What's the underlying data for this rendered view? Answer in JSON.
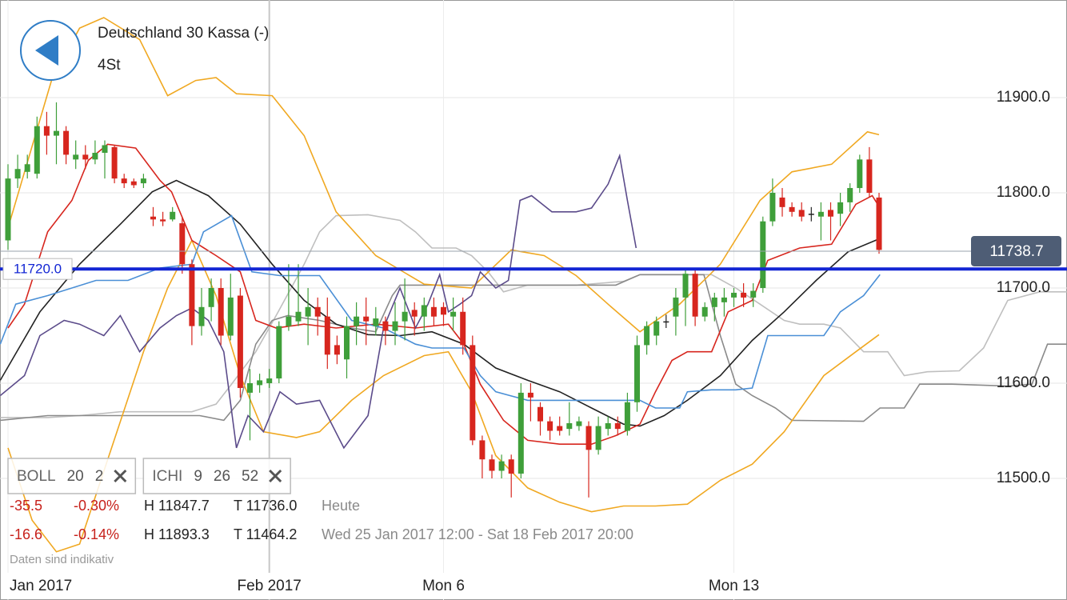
{
  "chart_data": {
    "type": "candlestick",
    "title": "Deutschland 30 Kassa (-)",
    "subtitle": "4St",
    "xlim": [
      -0.826,
      109.42
    ],
    "ylim": [
      11372.3,
      12002.5
    ],
    "xticks": [
      {
        "value": 0,
        "label": "Jan 2017"
      },
      {
        "value": 27,
        "label": "Feb 2017"
      },
      {
        "value": 45,
        "label": "Mon 6"
      },
      {
        "value": 75,
        "label": "Mon 13"
      }
    ],
    "yticks": [
      {
        "value": 11500,
        "label": "11500.0"
      },
      {
        "value": 11600,
        "label": "11600.0"
      },
      {
        "value": 11700,
        "label": "11700.0"
      },
      {
        "value": 11800,
        "label": "11800.0"
      },
      {
        "value": 11900,
        "label": "11900.0"
      }
    ],
    "grid": true,
    "up_color": "#3f9f3a",
    "down_color": "#d7261e",
    "x": [
      0,
      1,
      2,
      3,
      4,
      5,
      6,
      7,
      8,
      9,
      10,
      11,
      12,
      13,
      14,
      15,
      16,
      17,
      18,
      19,
      20,
      21,
      22,
      23,
      24,
      25,
      26,
      27,
      28,
      29,
      30,
      31,
      32,
      33,
      34,
      35,
      36,
      37,
      38,
      39,
      40,
      41,
      42,
      43,
      44,
      45,
      46,
      47,
      48,
      49,
      50,
      51,
      52,
      53,
      54,
      55,
      56,
      57,
      58,
      59,
      60,
      61,
      62,
      63,
      64,
      65,
      66,
      67,
      68,
      69,
      70,
      71,
      72,
      73,
      74,
      75,
      76,
      77,
      78,
      79,
      80,
      81,
      82,
      83,
      84,
      85,
      86,
      87,
      88,
      89,
      90
    ],
    "open": [
      11750,
      11815,
      11822,
      11820,
      11870,
      11860,
      11865,
      11835,
      11840,
      11835,
      11842,
      11848,
      11815,
      11812,
      11810,
      11775,
      11772,
      11772,
      11768,
      11725,
      11660,
      11680,
      11700,
      11650,
      11692,
      11590,
      11598,
      11600,
      11605,
      11660,
      11665,
      11670,
      11680,
      11670,
      11640,
      11625,
      11660,
      11670,
      11660,
      11665,
      11655,
      11665,
      11677,
      11670,
      11680,
      11680,
      11670,
      11675,
      11640,
      11540,
      11520,
      11508,
      11520,
      11505,
      11590,
      11575,
      11560,
      11555,
      11552,
      11555,
      11555,
      11530,
      11552,
      11558,
      11550,
      11580,
      11640,
      11650,
      11665,
      11670,
      11690,
      11715,
      11670,
      11680,
      11685,
      11690,
      11695,
      11690,
      11700,
      11770,
      11795,
      11785,
      11782,
      11778,
      11775,
      11782,
      11778,
      11790,
      11805,
      11835,
      11795
    ],
    "high": [
      11830,
      11840,
      11840,
      11880,
      11885,
      11895,
      11870,
      11855,
      11850,
      11855,
      11855,
      11850,
      11820,
      11815,
      11820,
      11785,
      11780,
      11785,
      11775,
      11730,
      11700,
      11710,
      11710,
      11715,
      11700,
      11615,
      11610,
      11615,
      11665,
      11725,
      11725,
      11700,
      11690,
      11690,
      11650,
      11670,
      11685,
      11690,
      11680,
      11670,
      11685,
      11710,
      11685,
      11690,
      11690,
      11685,
      11690,
      11690,
      11650,
      11545,
      11525,
      11525,
      11525,
      11600,
      11600,
      11580,
      11565,
      11565,
      11580,
      11565,
      11560,
      11565,
      11565,
      11565,
      11590,
      11650,
      11665,
      11670,
      11672,
      11700,
      11720,
      11720,
      11685,
      11695,
      11700,
      11700,
      11705,
      11705,
      11775,
      11815,
      11805,
      11790,
      11790,
      11785,
      11790,
      11790,
      11800,
      11810,
      11840,
      11848,
      11800
    ],
    "low": [
      11740,
      11805,
      11815,
      11815,
      11840,
      11830,
      11830,
      11825,
      11825,
      11830,
      11815,
      11810,
      11805,
      11805,
      11805,
      11765,
      11765,
      11770,
      11715,
      11640,
      11650,
      11665,
      11640,
      11645,
      11585,
      11540,
      11590,
      11595,
      11600,
      11655,
      11660,
      11640,
      11650,
      11615,
      11620,
      11605,
      11640,
      11640,
      11650,
      11640,
      11640,
      11645,
      11650,
      11655,
      11660,
      11660,
      11655,
      11630,
      11535,
      11500,
      11500,
      11500,
      11480,
      11500,
      11560,
      11545,
      11540,
      11545,
      11545,
      11550,
      11480,
      11525,
      11545,
      11545,
      11545,
      11570,
      11630,
      11640,
      11658,
      11650,
      11660,
      11660,
      11665,
      11665,
      11670,
      11680,
      11680,
      11680,
      11695,
      11765,
      11775,
      11775,
      11770,
      11770,
      11750,
      11750,
      11765,
      11780,
      11800,
      11795,
      11736
    ],
    "close": [
      11815,
      11825,
      11830,
      11870,
      11860,
      11865,
      11840,
      11840,
      11835,
      11842,
      11850,
      11815,
      11810,
      11808,
      11815,
      11772,
      11770,
      11780,
      11725,
      11660,
      11680,
      11700,
      11650,
      11690,
      11595,
      11600,
      11603,
      11605,
      11660,
      11670,
      11675,
      11680,
      11670,
      11630,
      11630,
      11660,
      11670,
      11665,
      11668,
      11655,
      11665,
      11675,
      11670,
      11682,
      11670,
      11672,
      11675,
      11640,
      11540,
      11520,
      11508,
      11518,
      11505,
      11590,
      11585,
      11560,
      11550,
      11550,
      11558,
      11560,
      11530,
      11555,
      11558,
      11552,
      11580,
      11640,
      11660,
      11665,
      11665,
      11690,
      11715,
      11670,
      11680,
      11690,
      11690,
      11695,
      11690,
      11697,
      11770,
      11800,
      11785,
      11780,
      11775,
      11778,
      11780,
      11775,
      11790,
      11805,
      11835,
      11800,
      11740
    ],
    "lines": [
      {
        "color": "#bfbfbf",
        "x": [
          -0.8,
          4.1,
          7.4,
          11.6,
          15.7,
          19,
          21.5,
          23.1,
          25.6,
          27.7,
          30.6,
          32.2,
          33.9,
          37.2,
          40.5,
          42.1,
          43.8,
          46.3,
          47.9,
          49.6,
          51.2,
          53.7,
          58.7,
          63.6,
          65.3,
          70.2,
          72.7,
          75.2,
          77.7,
          80.2,
          81.8,
          84.3,
          86,
          88.4,
          90.9,
          92.6,
          95,
          98.3,
          100.8,
          103.3,
          106.6,
          109.4
        ],
        "values": [
          11564,
          11564,
          11566,
          11570,
          11570,
          11570,
          11578,
          11599,
          11633,
          11671,
          11725,
          11759,
          11776,
          11777,
          11771,
          11759,
          11742,
          11742,
          11734,
          11717,
          11696,
          11703,
          11703,
          11707,
          11714,
          11714,
          11714,
          11700,
          11683,
          11666,
          11662,
          11662,
          11658,
          11633,
          11633,
          11608,
          11612,
          11613,
          11637,
          11687,
          11696,
          11696
        ]
      },
      {
        "color": "#8a8a8a",
        "x": [
          -0.8,
          4.1,
          12.4,
          19.8,
          22.3,
          24,
          25.6,
          27.3,
          28.9,
          32.2,
          35.5,
          38,
          39.7,
          40.5,
          62.8,
          65.3,
          71.9,
          73.6,
          75.2,
          76.9,
          79.3,
          81,
          88.4,
          90.1,
          92.6,
          94.2,
          97.5,
          103.3,
          105.8,
          107.4,
          109.4
        ],
        "values": [
          11561,
          11566,
          11566,
          11566,
          11561,
          11582,
          11641,
          11666,
          11671,
          11666,
          11658,
          11654,
          11692,
          11703,
          11703,
          11714,
          11714,
          11650,
          11599,
          11587,
          11574,
          11561,
          11560,
          11574,
          11574,
          11599,
          11599,
          11597,
          11599,
          11641,
          11641
        ]
      },
      {
        "color": "#f0a821",
        "x": [
          0,
          4.5,
          7.4,
          9.9,
          13.6,
          16.5,
          19.4,
          21.5,
          23.6,
          27.3,
          30.6,
          33.9,
          38,
          43,
          47.9,
          52,
          55.4,
          58.7,
          62,
          65.3,
          69.4,
          73.6,
          77.7,
          81,
          85.1,
          88.8,
          90
        ],
        "values": [
          11763,
          11918,
          11973,
          11984,
          11961,
          11902,
          11918,
          11921,
          11904,
          11902,
          11860,
          11780,
          11734,
          11704,
          11700,
          11740,
          11734,
          11713,
          11683,
          11654,
          11683,
          11725,
          11792,
          11822,
          11830,
          11864,
          11861
        ]
      },
      {
        "color": "#f0a821",
        "x": [
          0,
          2.5,
          5,
          7.4,
          10.7,
          14,
          16.5,
          19,
          21.5,
          24,
          26.4,
          29.8,
          32.2,
          35.5,
          38.8,
          43,
          45.5,
          47.9,
          50.4,
          53.7,
          57,
          60.3,
          63.6,
          66.9,
          70.2,
          73.6,
          76.9,
          80.2,
          84.3,
          87.6,
          90
        ],
        "values": [
          11532,
          11456,
          11423,
          11431,
          11532,
          11633,
          11700,
          11750,
          11692,
          11608,
          11549,
          11543,
          11549,
          11582,
          11608,
          11629,
          11633,
          11591,
          11524,
          11490,
          11475,
          11465,
          11471,
          11471,
          11473,
          11498,
          11515,
          11549,
          11608,
          11633,
          11651
        ]
      },
      {
        "color": "#222222",
        "x": [
          -0.8,
          3.3,
          7.4,
          11.6,
          14.9,
          17.4,
          20.7,
          24,
          27.3,
          30.6,
          33.9,
          37.2,
          40.5,
          43.8,
          47.1,
          50.4,
          53.7,
          57,
          60.3,
          63.6,
          65.3,
          67.8,
          70.2,
          73.6,
          76.9,
          80.2,
          83.5,
          86.8,
          90.1
        ],
        "values": [
          11603,
          11675,
          11725,
          11767,
          11801,
          11813,
          11797,
          11767,
          11725,
          11687,
          11662,
          11651,
          11650,
          11654,
          11641,
          11616,
          11603,
          11591,
          11574,
          11557,
          11555,
          11566,
          11582,
          11608,
          11645,
          11675,
          11708,
          11738,
          11752
        ]
      },
      {
        "color": "#d7261e",
        "x": [
          0,
          1.7,
          4.1,
          6.6,
          8.3,
          10.3,
          13.2,
          15.7,
          16.9,
          19,
          21.5,
          24,
          25.6,
          27.7,
          30.6,
          33.9,
          38,
          42.1,
          45.5,
          47.1,
          48.8,
          51.2,
          53.7,
          57,
          60.3,
          62.8,
          65.3,
          66.9,
          68.6,
          70.2,
          72.7,
          74.4,
          76.9,
          78.5,
          81.8,
          85.1,
          87.6,
          89.3,
          90.1
        ],
        "values": [
          11658,
          11683,
          11759,
          11792,
          11834,
          11851,
          11847,
          11813,
          11801,
          11750,
          11734,
          11717,
          11666,
          11658,
          11662,
          11658,
          11662,
          11658,
          11662,
          11641,
          11599,
          11561,
          11540,
          11536,
          11536,
          11545,
          11557,
          11591,
          11624,
          11633,
          11633,
          11675,
          11687,
          11729,
          11742,
          11746,
          11788,
          11797,
          11784
        ]
      },
      {
        "color": "#4a8fd6",
        "x": [
          -0.8,
          0.8,
          4.1,
          9.1,
          12.4,
          15.7,
          19,
          20.2,
          23.1,
          25.2,
          28.1,
          32.2,
          35.5,
          38.8,
          42.1,
          43.8,
          47.1,
          48.8,
          50.4,
          53.7,
          57,
          62,
          65.3,
          66.9,
          69.4,
          70.2,
          72.7,
          75.2,
          76.9,
          78.5,
          81.8,
          84.3,
          86,
          88.4,
          90.1
        ],
        "values": [
          11641,
          11683,
          11692,
          11708,
          11708,
          11721,
          11725,
          11759,
          11776,
          11717,
          11713,
          11713,
          11666,
          11658,
          11641,
          11637,
          11637,
          11608,
          11591,
          11582,
          11582,
          11582,
          11582,
          11574,
          11574,
          11591,
          11593,
          11593,
          11595,
          11650,
          11650,
          11650,
          11675,
          11692,
          11714
        ]
      },
      {
        "color": "#5b4b8a",
        "x": [
          -0.8,
          1.7,
          3.3,
          5.8,
          7.4,
          9.9,
          11.6,
          13.6,
          15.7,
          17.4,
          19,
          20.7,
          22.3,
          23.6,
          24.8,
          26.4,
          28.1,
          29.8,
          32.2,
          34.7,
          37.2,
          38.8,
          40.5,
          42.1,
          43.4,
          44.6,
          45.5,
          46.7,
          47.9,
          48.8,
          50.4,
          51.7,
          52.9,
          54.1,
          56.2,
          58.7,
          60.3,
          62,
          63.2,
          64,
          64.9
        ],
        "values": [
          11587,
          11608,
          11650,
          11666,
          11662,
          11650,
          11671,
          11633,
          11658,
          11671,
          11679,
          11666,
          11633,
          11532,
          11566,
          11549,
          11591,
          11578,
          11582,
          11532,
          11566,
          11658,
          11700,
          11658,
          11683,
          11714,
          11675,
          11683,
          11692,
          11717,
          11700,
          11708,
          11792,
          11797,
          11780,
          11780,
          11784,
          11809,
          11839,
          11792,
          11742
        ]
      }
    ],
    "level_line": {
      "value": 11720,
      "label": "11720.0",
      "color": "#1326d4"
    },
    "last_price": {
      "value": 11738.7
    },
    "indicators": [
      {
        "name": "BOLL",
        "params": [
          20,
          2
        ]
      },
      {
        "name": "ICHI",
        "params": [
          9,
          26,
          52
        ]
      }
    ],
    "stats": [
      {
        "change": -35.5,
        "pct": "-0.30%",
        "high": "H 11847.7",
        "low": "T 11736.0",
        "period": "Heute"
      },
      {
        "change": -16.6,
        "pct": "-0.14%",
        "high": "H 11893.3",
        "low": "T 11464.2",
        "period": "Wed 25 Jan 2017 12:00 - Sat 18 Feb 2017 20:00"
      }
    ],
    "note": "Daten sind indikativ"
  }
}
